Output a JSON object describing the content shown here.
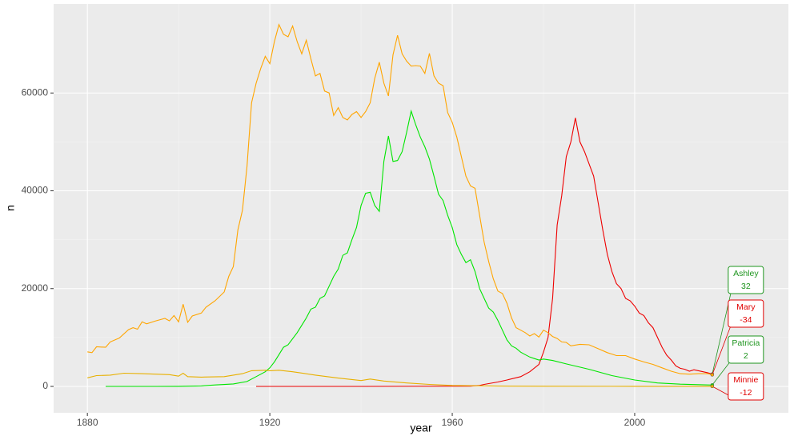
{
  "chart_data": {
    "type": "line",
    "x_label": "year",
    "y_label": "n",
    "xlim": [
      1872.6,
      2033.7
    ],
    "ylim": [
      -5400,
      78200
    ],
    "xticks": [
      1880,
      1920,
      1960,
      2000
    ],
    "yticks": [
      0,
      20000,
      40000,
      60000
    ],
    "grid": true,
    "series": [
      {
        "name": "Ashley",
        "color": "#ee0000",
        "label_color": "#1e951e",
        "change": 32,
        "x": [
          1917,
          1940,
          1964,
          1966,
          1967,
          1970,
          1972,
          1975,
          1977,
          1979,
          1980,
          1981,
          1982,
          1983,
          1984,
          1985,
          1986,
          1987,
          1988,
          1989,
          1990,
          1991,
          1992,
          1993,
          1994,
          1995,
          1996,
          1997,
          1998,
          1999,
          2000,
          2001,
          2002,
          2003,
          2004,
          2005,
          2006,
          2007,
          2008,
          2009,
          2010,
          2011,
          2012,
          2013,
          2014,
          2015,
          2016,
          2017
        ],
        "values": [
          0,
          0,
          50,
          200,
          400,
          900,
          1300,
          2000,
          3000,
          4500,
          7000,
          10000,
          18000,
          33000,
          39000,
          47000,
          50000,
          54900,
          50000,
          48000,
          45500,
          43000,
          37500,
          32000,
          27000,
          23500,
          21000,
          20000,
          18000,
          17500,
          16400,
          15000,
          14500,
          13000,
          12000,
          10000,
          8000,
          6400,
          5400,
          4200,
          3700,
          3500,
          3100,
          3400,
          3200,
          3000,
          2800,
          2500
        ]
      },
      {
        "name": "Mary",
        "color": "#ffa500",
        "label_color": "#e00000",
        "change": -34,
        "x": [
          1880,
          1881,
          1882,
          1884,
          1885,
          1887,
          1889,
          1890,
          1891,
          1892,
          1893,
          1895,
          1897,
          1898,
          1899,
          1900,
          1901,
          1902,
          1903,
          1905,
          1906,
          1908,
          1910,
          1911,
          1912,
          1913,
          1914,
          1915,
          1916,
          1917,
          1918,
          1919,
          1920,
          1921,
          1922,
          1923,
          1924,
          1925,
          1926,
          1927,
          1928,
          1929,
          1930,
          1931,
          1932,
          1933,
          1934,
          1935,
          1936,
          1937,
          1938,
          1939,
          1940,
          1941,
          1942,
          1943,
          1944,
          1945,
          1946,
          1947,
          1948,
          1949,
          1950,
          1951,
          1952,
          1953,
          1954,
          1955,
          1956,
          1957,
          1958,
          1959,
          1960,
          1961,
          1962,
          1963,
          1964,
          1965,
          1966,
          1967,
          1968,
          1969,
          1970,
          1971,
          1972,
          1973,
          1974,
          1975,
          1976,
          1977,
          1978,
          1979,
          1980,
          1981,
          1982,
          1983,
          1984,
          1985,
          1986,
          1988,
          1990,
          1992,
          1994,
          1996,
          1998,
          2000,
          2002,
          2004,
          2006,
          2008,
          2010,
          2012,
          2014,
          2016,
          2017
        ],
        "values": [
          7065,
          6900,
          8100,
          8000,
          9100,
          9900,
          11600,
          12000,
          11700,
          13200,
          12800,
          13400,
          13900,
          13400,
          14500,
          13200,
          16800,
          13100,
          14400,
          15000,
          16200,
          17500,
          19300,
          22500,
          24500,
          32000,
          36000,
          45000,
          58000,
          62000,
          65000,
          67500,
          66000,
          70500,
          74000,
          72000,
          71500,
          73700,
          70500,
          68000,
          70800,
          67000,
          63500,
          64000,
          60400,
          60000,
          55400,
          57000,
          55000,
          54500,
          55600,
          56200,
          55000,
          56200,
          58000,
          63000,
          66300,
          62000,
          59400,
          67800,
          71800,
          68000,
          66500,
          65500,
          65600,
          65500,
          64000,
          68100,
          63500,
          62000,
          61500,
          56000,
          54000,
          51000,
          47000,
          43000,
          41000,
          40500,
          35000,
          29500,
          25500,
          22000,
          19500,
          19000,
          17000,
          14000,
          12000,
          11500,
          11000,
          10300,
          10800,
          10100,
          11500,
          11000,
          10200,
          9800,
          9100,
          9000,
          8300,
          8600,
          8500,
          7700,
          6900,
          6300,
          6300,
          5600,
          5000,
          4500,
          3800,
          3100,
          2600,
          2500,
          2600,
          2600,
          2381
        ]
      },
      {
        "name": "Patricia",
        "color": "#00e600",
        "label_color": "#1e951e",
        "change": 2,
        "x": [
          1884,
          1895,
          1900,
          1905,
          1908,
          1912,
          1915,
          1917,
          1919,
          1920,
          1921,
          1922,
          1923,
          1924,
          1926,
          1928,
          1929,
          1930,
          1931,
          1932,
          1933,
          1934,
          1935,
          1936,
          1937,
          1938,
          1939,
          1940,
          1941,
          1942,
          1943,
          1944,
          1945,
          1946,
          1947,
          1948,
          1949,
          1950,
          1951,
          1952,
          1953,
          1954,
          1955,
          1956,
          1957,
          1958,
          1959,
          1960,
          1961,
          1962,
          1963,
          1964,
          1965,
          1966,
          1967,
          1968,
          1969,
          1970,
          1971,
          1972,
          1973,
          1974,
          1975,
          1976,
          1977,
          1978,
          1979,
          1980,
          1982,
          1985,
          1990,
          1995,
          2000,
          2005,
          2010,
          2017
        ],
        "values": [
          0,
          0,
          20,
          100,
          300,
          500,
          1000,
          2000,
          3000,
          3800,
          5000,
          6500,
          8000,
          8500,
          11000,
          14000,
          15800,
          16200,
          18000,
          18500,
          20500,
          22500,
          24000,
          26800,
          27300,
          30000,
          32500,
          37000,
          39500,
          39700,
          37000,
          35800,
          46000,
          51200,
          46000,
          46200,
          48000,
          52000,
          56300,
          53500,
          51000,
          49000,
          46500,
          43000,
          39300,
          38000,
          35000,
          32500,
          29000,
          27000,
          25300,
          25900,
          23500,
          20000,
          18000,
          16000,
          15200,
          13500,
          11500,
          9500,
          8300,
          7800,
          7000,
          6500,
          6000,
          5700,
          5400,
          5600,
          5300,
          4600,
          3500,
          2200,
          1300,
          700,
          450,
          280
        ]
      },
      {
        "name": "Minnie",
        "color": "#e8b000",
        "label_color": "#e00000",
        "change": -12,
        "x": [
          1880,
          1882,
          1885,
          1888,
          1892,
          1895,
          1898,
          1900,
          1901,
          1902,
          1905,
          1910,
          1912,
          1914,
          1916,
          1919,
          1920,
          1922,
          1925,
          1930,
          1935,
          1940,
          1942,
          1945,
          1950,
          1955,
          1960,
          1970,
          1980,
          2000,
          2017
        ],
        "values": [
          1746,
          2200,
          2300,
          2700,
          2600,
          2500,
          2400,
          2100,
          2700,
          2000,
          1900,
          2000,
          2300,
          2600,
          3200,
          3300,
          3200,
          3300,
          3000,
          2300,
          1700,
          1200,
          1500,
          1100,
          700,
          400,
          200,
          60,
          30,
          20,
          15
        ]
      }
    ]
  }
}
